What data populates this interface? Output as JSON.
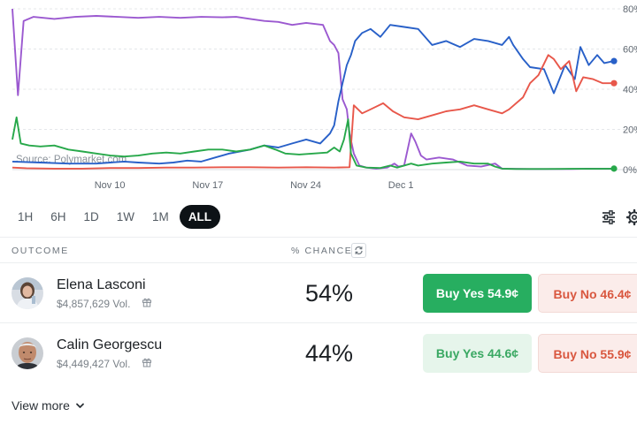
{
  "chart_data": {
    "type": "line",
    "source_label": "Source: Polymarket.com",
    "x_ticks": [
      "Nov 10",
      "Nov 17",
      "Nov 24",
      "Dec 1"
    ],
    "y_ticks": [
      "80%",
      "60%",
      "40%",
      "20%",
      "0%"
    ],
    "ylim": [
      0,
      80
    ],
    "y_unit": "%",
    "grid": true,
    "series": [
      {
        "color": "#9b59d0",
        "points": [
          [
            0,
            80
          ],
          [
            0.4,
            37
          ],
          [
            0.8,
            74
          ],
          [
            1.5,
            76
          ],
          [
            3,
            75
          ],
          [
            4.5,
            76
          ],
          [
            6,
            76.5
          ],
          [
            7.5,
            76
          ],
          [
            9,
            75.5
          ],
          [
            10.5,
            76
          ],
          [
            12,
            75.5
          ],
          [
            13.5,
            76
          ],
          [
            15,
            75.8
          ],
          [
            16,
            76
          ],
          [
            17,
            75
          ],
          [
            18,
            74
          ],
          [
            19,
            73.5
          ],
          [
            20,
            72
          ],
          [
            21,
            73
          ],
          [
            22.2,
            72
          ],
          [
            22.7,
            64
          ],
          [
            23,
            62
          ],
          [
            23.3,
            58
          ],
          [
            23.6,
            35
          ],
          [
            23.9,
            30
          ],
          [
            24.1,
            18
          ],
          [
            24.4,
            8
          ],
          [
            24.8,
            2
          ],
          [
            25.3,
            1
          ],
          [
            26,
            0.5
          ],
          [
            26.8,
            1
          ],
          [
            27.3,
            3
          ],
          [
            27.6,
            1.5
          ],
          [
            28,
            2
          ],
          [
            28.5,
            18
          ],
          [
            28.8,
            14
          ],
          [
            29.2,
            7
          ],
          [
            29.6,
            5
          ],
          [
            30.5,
            6
          ],
          [
            31.5,
            5
          ],
          [
            32.5,
            2
          ],
          [
            33.5,
            1.5
          ],
          [
            34.5,
            3
          ],
          [
            35,
            0.5
          ],
          [
            37,
            0.3
          ],
          [
            40,
            0.3
          ],
          [
            41,
            0.5
          ],
          [
            43,
            0.4
          ]
        ]
      },
      {
        "color": "#2860c8",
        "points": [
          [
            0,
            4
          ],
          [
            2,
            3.5
          ],
          [
            4,
            3
          ],
          [
            6,
            3
          ],
          [
            7,
            3.5
          ],
          [
            8,
            4
          ],
          [
            9,
            3.5
          ],
          [
            10.5,
            3
          ],
          [
            11.5,
            3.5
          ],
          [
            12.5,
            4.5
          ],
          [
            13.5,
            4
          ],
          [
            14.5,
            6
          ],
          [
            15.5,
            8
          ],
          [
            17,
            10
          ],
          [
            18,
            12
          ],
          [
            19,
            11
          ],
          [
            20,
            13
          ],
          [
            21,
            15
          ],
          [
            22,
            13
          ],
          [
            22.7,
            18
          ],
          [
            23,
            22
          ],
          [
            23.3,
            34
          ],
          [
            23.6,
            43
          ],
          [
            23.9,
            52
          ],
          [
            24.2,
            57
          ],
          [
            24.5,
            64
          ],
          [
            25,
            68
          ],
          [
            25.6,
            70
          ],
          [
            26.3,
            66
          ],
          [
            27,
            72
          ],
          [
            28,
            71
          ],
          [
            29,
            70
          ],
          [
            30,
            62
          ],
          [
            31,
            64
          ],
          [
            32,
            61
          ],
          [
            33,
            65
          ],
          [
            34,
            64
          ],
          [
            35,
            62
          ],
          [
            35.5,
            66
          ],
          [
            35.8,
            62
          ],
          [
            36.5,
            55
          ],
          [
            37,
            51
          ],
          [
            38,
            50
          ],
          [
            38.7,
            38
          ],
          [
            39.5,
            52
          ],
          [
            40.2,
            45
          ],
          [
            40.6,
            61
          ],
          [
            41.2,
            52
          ],
          [
            41.8,
            57
          ],
          [
            42.3,
            53
          ],
          [
            43,
            54
          ]
        ]
      },
      {
        "color": "#e8574a",
        "points": [
          [
            0,
            1
          ],
          [
            1,
            0.7
          ],
          [
            3,
            0.5
          ],
          [
            5,
            0.5
          ],
          [
            7,
            0.8
          ],
          [
            9,
            0.8
          ],
          [
            11,
            1
          ],
          [
            13,
            1
          ],
          [
            15,
            1.2
          ],
          [
            17,
            1.2
          ],
          [
            19,
            1
          ],
          [
            21,
            1.2
          ],
          [
            23,
            1
          ],
          [
            24.1,
            1.2
          ],
          [
            24.4,
            32
          ],
          [
            25,
            28
          ],
          [
            25.6,
            30
          ],
          [
            26.5,
            33
          ],
          [
            27.2,
            29
          ],
          [
            28,
            26
          ],
          [
            29,
            25
          ],
          [
            30,
            27
          ],
          [
            31,
            29
          ],
          [
            32,
            30
          ],
          [
            33,
            32
          ],
          [
            34,
            30
          ],
          [
            35,
            28
          ],
          [
            35.5,
            30
          ],
          [
            36.5,
            36
          ],
          [
            37,
            43
          ],
          [
            37.6,
            47
          ],
          [
            38.3,
            57
          ],
          [
            38.7,
            55
          ],
          [
            39.2,
            50
          ],
          [
            39.8,
            54
          ],
          [
            40.3,
            39
          ],
          [
            40.8,
            46
          ],
          [
            41.5,
            45
          ],
          [
            42.2,
            43
          ],
          [
            43,
            43
          ]
        ]
      },
      {
        "color": "#27a84a",
        "points": [
          [
            0,
            15
          ],
          [
            0.3,
            26
          ],
          [
            0.6,
            13
          ],
          [
            1.2,
            12
          ],
          [
            2,
            11.5
          ],
          [
            3,
            12
          ],
          [
            4,
            10
          ],
          [
            5,
            9
          ],
          [
            6,
            8
          ],
          [
            7,
            7
          ],
          [
            8,
            6.5
          ],
          [
            9,
            7
          ],
          [
            10,
            8
          ],
          [
            11,
            8.5
          ],
          [
            12,
            8
          ],
          [
            13,
            9
          ],
          [
            14,
            10
          ],
          [
            15,
            10
          ],
          [
            16,
            9
          ],
          [
            17,
            10
          ],
          [
            18,
            12
          ],
          [
            18.8,
            10
          ],
          [
            19.5,
            8
          ],
          [
            20.5,
            7.5
          ],
          [
            21.5,
            8
          ],
          [
            22.5,
            8.5
          ],
          [
            23,
            11
          ],
          [
            23.4,
            9
          ],
          [
            23.7,
            15
          ],
          [
            24,
            25
          ],
          [
            24.2,
            8
          ],
          [
            24.6,
            2
          ],
          [
            25.3,
            1
          ],
          [
            26.3,
            0.8
          ],
          [
            27,
            2
          ],
          [
            27.5,
            1
          ],
          [
            28.5,
            3
          ],
          [
            29,
            2
          ],
          [
            30,
            3
          ],
          [
            31,
            3.5
          ],
          [
            32,
            4
          ],
          [
            33,
            3
          ],
          [
            34,
            3
          ],
          [
            34.5,
            1.5
          ],
          [
            35,
            0.5
          ],
          [
            36,
            0.3
          ],
          [
            38,
            0.3
          ],
          [
            40,
            0.4
          ],
          [
            42,
            0.4
          ],
          [
            43,
            0.5
          ]
        ]
      }
    ]
  },
  "ranges": [
    "1H",
    "6H",
    "1D",
    "1W",
    "1M",
    "ALL"
  ],
  "active_range": "ALL",
  "icons": {
    "filter": "sliders-icon",
    "settings": "gear-icon",
    "refresh": "refresh-icon",
    "gift": "gift-icon",
    "chevron": "chevron-down-icon"
  },
  "table": {
    "outcome_header": "OUTCOME",
    "chance_header": "% CHANCE"
  },
  "outcomes": [
    {
      "name": "Elena Lasconi",
      "volume": "$4,857,629 Vol.",
      "chance": "54%",
      "buy_yes": "Buy Yes 54.9¢",
      "buy_no": "Buy No 46.4¢"
    },
    {
      "name": "Calin Georgescu",
      "volume": "$4,449,427 Vol.",
      "chance": "44%",
      "buy_yes": "Buy Yes 44.6¢",
      "buy_no": "Buy No 55.9¢"
    }
  ],
  "view_more": "View more",
  "colors": {
    "yes_solid": "#27ae60",
    "yes_light": "#e6f5eb",
    "no_light": "#fbecea",
    "no_text": "#d9573f",
    "active_range_bg": "#0d1216"
  }
}
